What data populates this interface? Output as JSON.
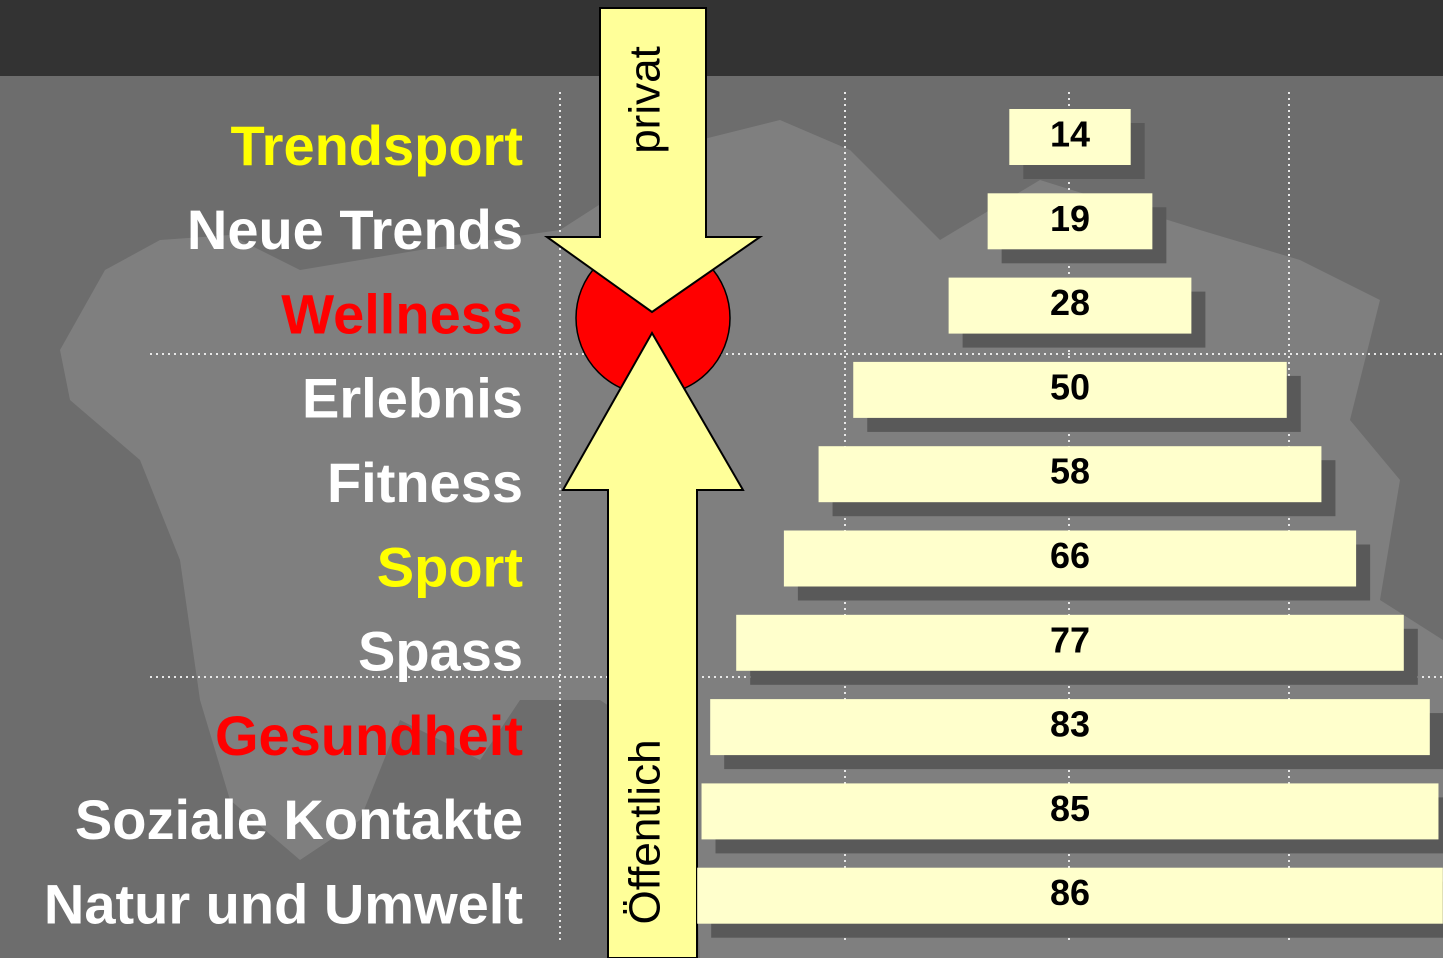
{
  "chart_data": {
    "type": "bar",
    "orientation": "horizontal-centered",
    "categories": [
      "Trendsport",
      "Neue Trends",
      "Wellness",
      "Erlebnis",
      "Fitness",
      "Sport",
      "Spass",
      "Gesundheit",
      "Soziale Kontakte",
      "Natur und Umwelt"
    ],
    "category_colors": [
      "#ffff00",
      "#ffffff",
      "#ff0000",
      "#ffffff",
      "#ffffff",
      "#ffff00",
      "#ffffff",
      "#ff0000",
      "#ffffff",
      "#ffffff"
    ],
    "values": [
      14,
      19,
      28,
      50,
      58,
      66,
      77,
      83,
      85,
      86
    ],
    "color": "#ffffcc",
    "annotations": [
      "privat",
      "Öffentlich"
    ]
  }
}
